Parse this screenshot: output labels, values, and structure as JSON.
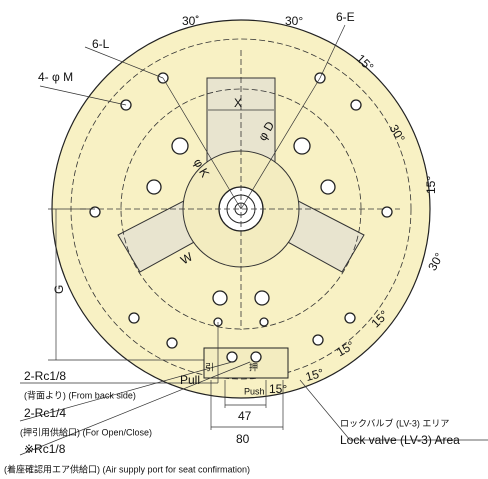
{
  "labels": {
    "six_l": "6-L",
    "six_e": "6-E",
    "four_m": "4- φ M",
    "x": "X",
    "phi_d": "φ D",
    "phi_k": "φ K",
    "w": "W",
    "g": "G",
    "pull_en": "Pull",
    "pull_ja": "引",
    "push_ja": "押",
    "push_en": "Push",
    "dim_47": "47",
    "dim_80": "80"
  },
  "angle_labels": [
    "30˚",
    "30°",
    "15°",
    "30°",
    "15°",
    "30°",
    "15°",
    "15°",
    "15°",
    "15°"
  ],
  "notes": {
    "rc18": "2-Rc1/8",
    "rc18_sub": "(背面より) (From back side)",
    "rc14": "2-Rc1/4",
    "rc14_sub": "(押引用供給口) (For Open/Close)",
    "seat": "※Rc1/8",
    "seat_sub": "(着座確認用エア供給口) (Air supply port for seat confirmation)",
    "lv_ja": "ロックバルブ (LV-3) エリア",
    "lv_en": "Lock valve (LV-3) Area"
  }
}
